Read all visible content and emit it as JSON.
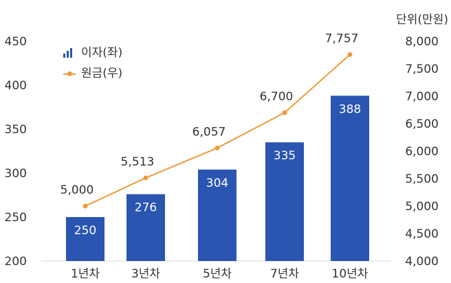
{
  "unit_label": "단위(만원)",
  "chart_data": {
    "type": "bar",
    "categories": [
      "1년차",
      "3년차",
      "5년차",
      "7년차",
      "10년차"
    ],
    "series": [
      {
        "name": "이자(좌)",
        "type": "bar",
        "axis": "left",
        "color": "#2A55B1",
        "values": [
          250,
          276,
          304,
          335,
          388
        ]
      },
      {
        "name": "원금(우)",
        "type": "line",
        "axis": "right",
        "color": "#EE9B3A",
        "values": [
          5000,
          5513,
          6057,
          6700,
          7757
        ]
      }
    ],
    "value_labels": {
      "bars": [
        "250",
        "276",
        "304",
        "335",
        "388"
      ],
      "line": [
        "5,000",
        "5,513",
        "6,057",
        "6,700",
        "7,757"
      ]
    },
    "y_left": {
      "ylim": [
        200,
        450
      ],
      "ticks": [
        "200",
        "250",
        "300",
        "350",
        "400",
        "450"
      ]
    },
    "y_right": {
      "ylim": [
        4000,
        8000
      ],
      "ticks": [
        "4,000",
        "4,500",
        "5,000",
        "5,500",
        "6,000",
        "6,500",
        "7,000",
        "7,500",
        "8,000"
      ]
    },
    "grid": false,
    "legend_position": "top-left"
  }
}
